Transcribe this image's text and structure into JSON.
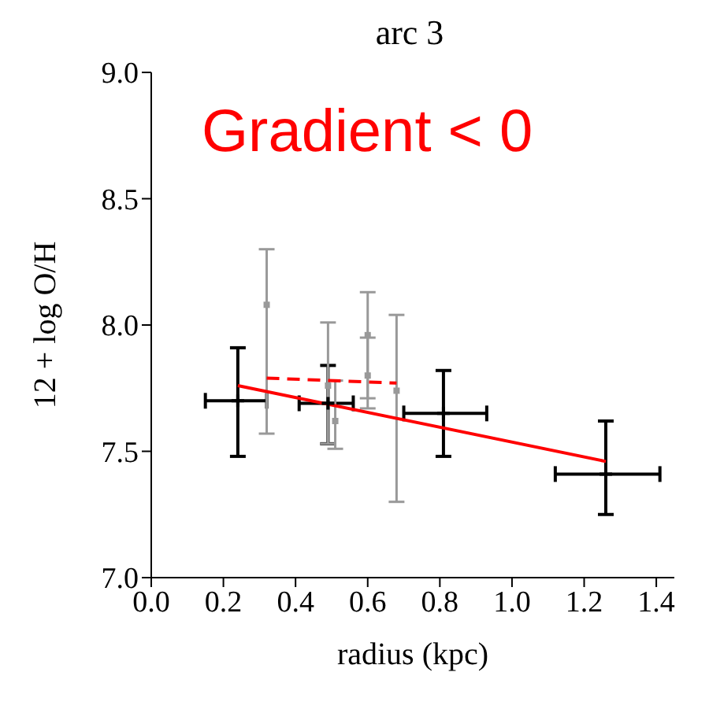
{
  "chart_data": {
    "type": "scatter",
    "title": "arc 3",
    "xlabel": "radius (kpc)",
    "ylabel": "12 + log O/H",
    "annotations": [
      "Gradient < 0"
    ],
    "xlim": [
      0,
      1.45
    ],
    "xticks": [
      {
        "value": 0,
        "label": "0.0"
      },
      {
        "value": 0.2,
        "label": "0.2"
      },
      {
        "value": 0.4,
        "label": "0.4"
      },
      {
        "value": 0.6,
        "label": "0.6"
      },
      {
        "value": 0.8,
        "label": "0.8"
      },
      {
        "value": 1,
        "label": "1.0"
      },
      {
        "value": 1.2,
        "label": "1.2"
      },
      {
        "value": 1.4,
        "label": "1.4"
      }
    ],
    "ylim": [
      7,
      9
    ],
    "yticks": [
      {
        "value": 7,
        "label": "7.0"
      },
      {
        "value": 7.5,
        "label": "7.5"
      },
      {
        "value": 8,
        "label": "8.0"
      },
      {
        "value": 8.5,
        "label": "8.5"
      },
      {
        "value": 9,
        "label": "9.0"
      }
    ],
    "series": [
      {
        "color": "#000000",
        "marker": "cross",
        "x": [
          0.24,
          0.49,
          0.81,
          1.26
        ],
        "values": [
          7.7,
          7.69,
          7.65,
          7.41
        ],
        "errors": [
          [
            7.48,
            7.91
          ],
          [
            7.53,
            7.84
          ],
          [
            7.48,
            7.82
          ],
          [
            7.25,
            7.62
          ]
        ],
        "xerrors": [
          [
            0.15,
            0.32
          ],
          [
            0.41,
            0.56
          ],
          [
            0.7,
            0.93
          ],
          [
            1.12,
            1.41
          ]
        ]
      },
      {
        "color": "#999999",
        "marker": "square",
        "x": [
          0.32,
          0.49,
          0.51,
          0.6,
          0.6,
          0.68
        ],
        "values": [
          8.08,
          7.76,
          7.62,
          7.96,
          7.8,
          7.74
        ],
        "errors": [
          [
            7.57,
            8.3
          ],
          [
            7.53,
            8.01
          ],
          [
            7.51,
            7.78
          ],
          [
            7.71,
            8.13
          ],
          [
            7.67,
            7.95
          ],
          [
            7.3,
            8.04
          ]
        ]
      },
      {
        "type": "line",
        "color": "#ff0000",
        "line_style": "solid",
        "x": [
          0.24,
          1.26
        ],
        "values": [
          7.76,
          7.46
        ]
      },
      {
        "type": "line",
        "color": "#ff0000",
        "line_style": "dashed",
        "x": [
          0.32,
          0.68
        ],
        "values": [
          7.79,
          7.77
        ]
      }
    ]
  }
}
